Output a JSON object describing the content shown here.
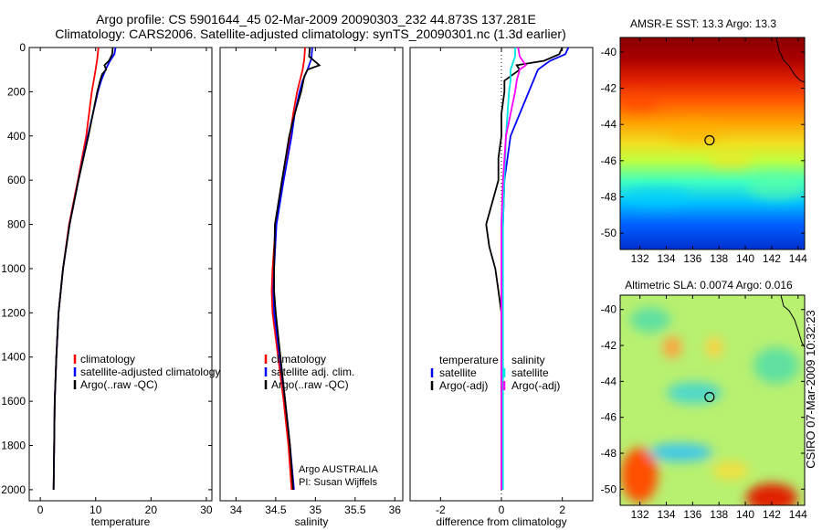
{
  "header": {
    "line1": "Argo profile: CS 5901644_45 02-Mar-2009 20090303_232 44.873S 137.281E",
    "line2": "Climatology: CARS2006. Satellite-adjusted climatology: synTS_20090301.nc (1.3d earlier)"
  },
  "side_label": "CSIRO 07-Mar-2009 10:32:23",
  "chart_data": [
    {
      "type": "line",
      "panel": "temperature",
      "xlabel": "temperature",
      "ylabel": "",
      "xlim": [
        -2,
        31
      ],
      "ylim": [
        2050,
        0
      ],
      "xticks": [
        0,
        10,
        20,
        30
      ],
      "yticks": [
        0,
        200,
        400,
        600,
        800,
        1000,
        1200,
        1400,
        1600,
        1800,
        2000
      ],
      "legend": [
        "climatology",
        "satellite-adjusted climatology",
        "Argo(..raw -QC)"
      ],
      "legend_position": "lower-right",
      "series": [
        {
          "name": "climatology",
          "color": "#ff0000",
          "depth": [
            0,
            50,
            100,
            200,
            400,
            600,
            800,
            1000,
            1200,
            1400,
            1600,
            1800,
            2000
          ],
          "values": [
            10.5,
            10.3,
            10.0,
            9.3,
            8.3,
            6.8,
            5.2,
            4.1,
            3.3,
            2.9,
            2.6,
            2.5,
            2.4
          ]
        },
        {
          "name": "satellite-adjusted climatology",
          "color": "#0000ff",
          "depth": [
            0,
            30,
            60,
            100,
            150,
            200,
            400,
            600,
            800,
            1000,
            1200,
            1400,
            1600,
            1800,
            2000
          ],
          "values": [
            13.6,
            13.4,
            12.6,
            11.8,
            11.0,
            10.4,
            8.6,
            6.9,
            5.3,
            4.1,
            3.3,
            2.9,
            2.6,
            2.5,
            2.4
          ]
        },
        {
          "name": "Argo(..raw -QC)",
          "color": "#000000",
          "depth": [
            0,
            30,
            60,
            80,
            100,
            120,
            150,
            200,
            400,
            600,
            800,
            1000,
            1200,
            1400,
            1600,
            1800,
            2000
          ],
          "values": [
            13.1,
            13.0,
            12.4,
            11.6,
            11.9,
            11.2,
            10.8,
            10.3,
            8.7,
            6.9,
            5.3,
            4.1,
            3.3,
            2.9,
            2.6,
            2.5,
            2.4
          ]
        }
      ]
    },
    {
      "type": "line",
      "panel": "salinity",
      "xlabel": "salinity",
      "ylabel": "",
      "xlim": [
        33.8,
        36.1
      ],
      "ylim": [
        2050,
        0
      ],
      "xticks": [
        34,
        34.5,
        35,
        35.5,
        36
      ],
      "yticks": [],
      "legend": [
        "climatology",
        "satellite adj. clim.",
        "Argo(..raw -QC)"
      ],
      "legend_position": "lower-right",
      "annotation": [
        "Argo AUSTRALIA",
        "PI: Susan Wijffels"
      ],
      "series": [
        {
          "name": "climatology",
          "color": "#ff0000",
          "depth": [
            0,
            50,
            100,
            200,
            300,
            400,
            600,
            800,
            1000,
            1100,
            1200,
            1400,
            1600,
            1800,
            2000
          ],
          "values": [
            34.87,
            34.86,
            34.84,
            34.77,
            34.72,
            34.68,
            34.58,
            34.5,
            34.46,
            34.45,
            34.46,
            34.53,
            34.6,
            34.66,
            34.7
          ]
        },
        {
          "name": "satellite adj. clim.",
          "color": "#0000ff",
          "depth": [
            0,
            50,
            100,
            150,
            200,
            300,
            400,
            600,
            800,
            1000,
            1100,
            1200,
            1400,
            1600,
            1800,
            2000
          ],
          "values": [
            34.96,
            34.95,
            34.9,
            34.84,
            34.8,
            34.74,
            34.7,
            34.6,
            34.51,
            34.48,
            34.47,
            34.48,
            34.55,
            34.62,
            34.68,
            34.73
          ]
        },
        {
          "name": "Argo(..raw -QC)",
          "color": "#000000",
          "depth": [
            0,
            40,
            80,
            100,
            130,
            200,
            300,
            400,
            600,
            800,
            1000,
            1100,
            1200,
            1400,
            1600,
            1800,
            2000
          ],
          "values": [
            34.93,
            34.92,
            35.05,
            34.9,
            34.86,
            34.82,
            34.74,
            34.67,
            34.58,
            34.49,
            34.48,
            34.48,
            34.5,
            34.56,
            34.62,
            34.68,
            34.72
          ]
        }
      ]
    },
    {
      "type": "line",
      "panel": "difference",
      "xlabel": "difference from climatology",
      "ylabel": "",
      "xlim": [
        -3,
        3
      ],
      "ylim": [
        2050,
        0
      ],
      "xticks": [
        -2,
        0,
        2
      ],
      "yticks": [],
      "legend_columns": [
        {
          "heading": "temperature",
          "items": [
            "satellite",
            "Argo(-adj)"
          ]
        },
        {
          "heading": "salinity",
          "items": [
            "satellite",
            "Argo(-adj)"
          ]
        }
      ],
      "legend_position": "lower-center",
      "series": [
        {
          "name": "temperature satellite",
          "color": "#0000ff",
          "depth": [
            0,
            30,
            60,
            100,
            200,
            400,
            600,
            800,
            1000,
            1200,
            1400,
            1600,
            1800,
            2000
          ],
          "values": [
            2.2,
            2.1,
            1.6,
            1.2,
            0.9,
            0.3,
            0.1,
            0.05,
            0.02,
            0.0,
            0.0,
            0.0,
            0.0,
            0.0
          ]
        },
        {
          "name": "temperature Argo(-adj)",
          "color": "#000000",
          "depth": [
            0,
            30,
            60,
            80,
            100,
            150,
            200,
            300,
            400,
            500,
            600,
            700,
            800,
            900,
            1000,
            1100,
            1200,
            1400,
            1600,
            1800,
            2000
          ],
          "values": [
            2.0,
            1.9,
            1.4,
            0.5,
            0.6,
            0.1,
            0.1,
            0.0,
            0.0,
            -0.1,
            -0.1,
            -0.3,
            -0.5,
            -0.4,
            -0.2,
            -0.1,
            0.0,
            0.0,
            0.0,
            0.0,
            0.0
          ]
        },
        {
          "name": "salinity satellite",
          "color": "#00e5e5",
          "depth": [
            0,
            40,
            80,
            100,
            150,
            200,
            400,
            600,
            800,
            1000,
            1200,
            1400,
            1600,
            1800,
            2000
          ],
          "values": [
            0.45,
            0.45,
            0.35,
            0.3,
            0.3,
            0.25,
            0.15,
            0.1,
            0.05,
            0.05,
            0.05,
            0.05,
            0.05,
            0.05,
            0.05
          ]
        },
        {
          "name": "salinity Argo(-adj)",
          "color": "#ff00ff",
          "depth": [
            0,
            40,
            80,
            100,
            150,
            200,
            300,
            400,
            600,
            800,
            1000,
            1200,
            1400,
            1600,
            1800,
            2000
          ],
          "values": [
            0.55,
            0.6,
            0.8,
            0.6,
            0.5,
            0.45,
            0.3,
            0.15,
            0.05,
            0.0,
            0.0,
            0.0,
            0.0,
            0.0,
            0.0,
            0.0
          ]
        }
      ]
    },
    {
      "type": "heatmap",
      "panel": "sst_map",
      "title": "AMSR-E SST: 13.3 Argo: 13.3",
      "xlim": [
        130.5,
        144.5
      ],
      "ylim": [
        -50.9,
        -39.2
      ],
      "xticks": [
        132,
        134,
        136,
        138,
        140,
        142,
        144
      ],
      "yticks": [
        -40,
        -42,
        -44,
        -46,
        -48,
        -50
      ],
      "marker": {
        "lon": 137.281,
        "lat": -44.873
      }
    },
    {
      "type": "heatmap",
      "panel": "sla_map",
      "title": "Altimetric SLA: 0.0074 Argo: 0.016",
      "xlim": [
        130.5,
        144.5
      ],
      "ylim": [
        -50.9,
        -39.2
      ],
      "xticks": [
        132,
        134,
        136,
        138,
        140,
        142,
        144
      ],
      "yticks": [
        -40,
        -42,
        -44,
        -46,
        -48,
        -50
      ],
      "marker": {
        "lon": 137.281,
        "lat": -44.873
      }
    }
  ]
}
